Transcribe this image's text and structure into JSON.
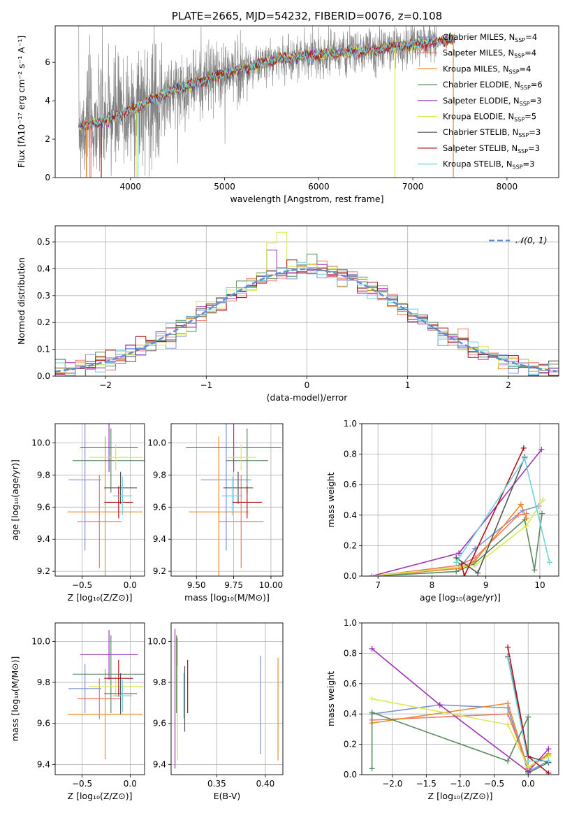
{
  "colors": {
    "chabrier_miles": "#7b93d6",
    "salpeter_miles": "#f0786a",
    "kroupa_miles": "#ef8a2a",
    "chabrier_elodie": "#5b8a5e",
    "salpeter_elodie": "#9d33b8",
    "kroupa_elodie": "#d7ea4f",
    "chabrier_stelib": "#555555",
    "salpeter_stelib": "#b0121a",
    "kroupa_stelib": "#72d0dc",
    "data": "#808080",
    "normal": "#5b8ed6",
    "grid": "#b0b0b0"
  },
  "chart_data": [
    {
      "id": "spectrum",
      "type": "line",
      "title": "PLATE=2665, MJD=54232, FIBERID=0076, z=0.108",
      "xlabel": "wavelength [Angstrom, rest frame]",
      "ylabel": "Flux [fλ10⁻¹⁷ erg cm⁻² s⁻¹ A⁻¹]",
      "xlim": [
        3200,
        8550
      ],
      "ylim": [
        0,
        7.9
      ],
      "xticks": [
        4000,
        5000,
        6000,
        7000,
        8000
      ],
      "yticks": [
        0,
        2,
        4,
        6
      ],
      "grid": false,
      "legend_position": "top-right",
      "legend": [
        {
          "name": "Chabrier MILES, N_SSP=4",
          "base": "Chabrier MILES, N",
          "sub": "SSP",
          "tail": "=4",
          "color": "chabrier_miles"
        },
        {
          "name": "Salpeter MILES, N_SSP=4",
          "base": "Salpeter MILES, N",
          "sub": "SSP",
          "tail": "=4",
          "color": "salpeter_miles"
        },
        {
          "name": "Kroupa MILES, N_SSP=4",
          "base": "Kroupa MILES, N",
          "sub": "SSP",
          "tail": "=4",
          "color": "kroupa_miles"
        },
        {
          "name": "Chabrier ELODIE, N_SSP=6",
          "base": "Chabrier ELODIE, N",
          "sub": "SSP",
          "tail": "=6",
          "color": "chabrier_elodie"
        },
        {
          "name": "Salpeter ELODIE, N_SSP=3",
          "base": "Salpeter ELODIE, N",
          "sub": "SSP",
          "tail": "=3",
          "color": "salpeter_elodie"
        },
        {
          "name": "Kroupa ELODIE, N_SSP=5",
          "base": "Kroupa ELODIE, N",
          "sub": "SSP",
          "tail": "=5",
          "color": "kroupa_elodie"
        },
        {
          "name": "Chabrier STELIB, N_SSP=3",
          "base": "Chabrier STELIB, N",
          "sub": "SSP",
          "tail": "=3",
          "color": "chabrier_stelib"
        },
        {
          "name": "Salpeter STELIB, N_SSP=3",
          "base": "Salpeter STELIB, N",
          "sub": "SSP",
          "tail": "=3",
          "color": "salpeter_stelib"
        },
        {
          "name": "Kroupa STELIB, N_SSP=3",
          "base": "Kroupa STELIB, N",
          "sub": "SSP",
          "tail": "=3",
          "color": "kroupa_stelib"
        }
      ],
      "continuum": [
        [
          3450,
          2.7
        ],
        [
          3600,
          2.8
        ],
        [
          3800,
          3.1
        ],
        [
          4000,
          3.5
        ],
        [
          4200,
          4.0
        ],
        [
          4500,
          4.6
        ],
        [
          4800,
          5.1
        ],
        [
          5000,
          5.4
        ],
        [
          5300,
          5.8
        ],
        [
          5600,
          6.2
        ],
        [
          6000,
          6.4
        ],
        [
          6500,
          6.6
        ],
        [
          7000,
          6.9
        ],
        [
          7400,
          7.2
        ]
      ],
      "model_range": [
        3450,
        7450
      ],
      "data_range": [
        3450,
        7250
      ]
    },
    {
      "id": "residuals",
      "type": "histogram",
      "xlabel": "(data-model)/error",
      "ylabel": "Normed distribution",
      "xlim": [
        -2.5,
        2.5
      ],
      "ylim": [
        0,
        0.56
      ],
      "xticks": [
        -2,
        -1,
        0,
        1,
        2
      ],
      "yticks": [
        0.0,
        0.1,
        0.2,
        0.3,
        0.4,
        0.5
      ],
      "grid": true,
      "legend_position": "top-right",
      "legend": "𝒩(0, 1)",
      "series_colors": [
        "chabrier_miles",
        "salpeter_miles",
        "kroupa_miles",
        "chabrier_elodie",
        "salpeter_elodie",
        "kroupa_elodie",
        "chabrier_stelib",
        "salpeter_stelib",
        "kroupa_stelib"
      ],
      "bin_width": 0.1
    },
    {
      "id": "age_vs_Z",
      "type": "errorbar",
      "xlabel": "Z [log₁₀(Z/Z⊙)]",
      "ylabel": "age  [log₁₀(age/yr)]",
      "xlim": [
        -0.78,
        0.15
      ],
      "ylim": [
        9.17,
        10.12
      ],
      "xticks": [
        -0.5,
        0.0
      ],
      "xticklabels": [
        "−0.5",
        "0.0"
      ],
      "yticks": [
        9.2,
        9.4,
        9.6,
        9.8,
        10.0
      ],
      "grid": true,
      "points": [
        {
          "c": "chabrier_miles",
          "x": -0.47,
          "xe": 0.17,
          "y": 9.77,
          "ye": 0.44
        },
        {
          "c": "salpeter_miles",
          "x": -0.32,
          "xe": 0.23,
          "y": 9.51,
          "ye": 0.29
        },
        {
          "c": "kroupa_miles",
          "x": -0.26,
          "xe": 0.39,
          "y": 9.57,
          "ye": 0.47
        },
        {
          "c": "chabrier_elodie",
          "x": -0.2,
          "xe": 0.4,
          "y": 9.89,
          "ye": 0.2
        },
        {
          "c": "salpeter_elodie",
          "x": -0.22,
          "xe": 0.3,
          "y": 9.97,
          "ye": 0.15
        },
        {
          "c": "kroupa_elodie",
          "x": -0.15,
          "xe": 0.28,
          "y": 9.91,
          "ye": 0.08
        },
        {
          "c": "chabrier_stelib",
          "x": -0.1,
          "xe": 0.17,
          "y": 9.72,
          "ye": 0.1
        },
        {
          "c": "salpeter_stelib",
          "x": -0.12,
          "xe": 0.15,
          "y": 9.63,
          "ye": 0.1
        },
        {
          "c": "kroupa_stelib",
          "x": -0.08,
          "xe": 0.1,
          "y": 9.67,
          "ye": 0.12
        }
      ]
    },
    {
      "id": "age_vs_mass",
      "type": "errorbar",
      "xlabel": "mass [log₁₀(M/M⊙)]",
      "ylabel": "",
      "xlim": [
        9.33,
        10.08
      ],
      "ylim": [
        9.17,
        10.12
      ],
      "xticks": [
        9.5,
        9.75,
        10.0
      ],
      "xticklabels": [
        "9.50",
        "9.75",
        "10.00"
      ],
      "yticks": [
        9.2,
        9.4,
        9.6,
        9.8,
        10.0
      ],
      "grid": true,
      "points": [
        {
          "c": "chabrier_miles",
          "x": 9.7,
          "xe": 0.17,
          "y": 9.77,
          "ye": 0.44
        },
        {
          "c": "salpeter_miles",
          "x": 9.8,
          "xe": 0.15,
          "y": 9.51,
          "ye": 0.29
        },
        {
          "c": "kroupa_miles",
          "x": 9.65,
          "xe": 0.2,
          "y": 9.57,
          "ye": 0.47
        },
        {
          "c": "chabrier_elodie",
          "x": 9.84,
          "xe": 0.14,
          "y": 9.89,
          "ye": 0.2
        },
        {
          "c": "salpeter_elodie",
          "x": 9.75,
          "xe": 0.32,
          "y": 9.97,
          "ye": 0.15
        },
        {
          "c": "kroupa_elodie",
          "x": 9.8,
          "xe": 0.1,
          "y": 9.91,
          "ye": 0.08
        },
        {
          "c": "chabrier_stelib",
          "x": 9.78,
          "xe": 0.1,
          "y": 9.72,
          "ye": 0.1
        },
        {
          "c": "salpeter_stelib",
          "x": 9.84,
          "xe": 0.1,
          "y": 9.63,
          "ye": 0.1
        },
        {
          "c": "kroupa_stelib",
          "x": 9.74,
          "xe": 0.07,
          "y": 9.67,
          "ye": 0.12
        }
      ]
    },
    {
      "id": "weight_vs_age",
      "type": "line",
      "xlabel": "age  [log₁₀(age/yr)]",
      "ylabel": "mass weight",
      "xlim": [
        6.7,
        10.35
      ],
      "ylim": [
        0,
        1.0
      ],
      "xticks": [
        7,
        8,
        9,
        10
      ],
      "yticks": [
        0.0,
        0.2,
        0.4,
        0.6,
        0.8,
        1.0
      ],
      "grid": true,
      "series": [
        {
          "c": "chabrier_miles",
          "points": [
            [
              6.88,
              0.0
            ],
            [
              8.5,
              0.05
            ],
            [
              8.8,
              0.18
            ],
            [
              9.68,
              0.43
            ],
            [
              9.98,
              0.46
            ]
          ]
        },
        {
          "c": "salpeter_miles",
          "points": [
            [
              6.88,
              0.0
            ],
            [
              8.5,
              0.07
            ],
            [
              8.8,
              0.12
            ],
            [
              9.6,
              0.4
            ],
            [
              9.75,
              0.41
            ]
          ]
        },
        {
          "c": "kroupa_miles",
          "points": [
            [
              6.88,
              0.0
            ],
            [
              8.5,
              0.05
            ],
            [
              8.8,
              0.1
            ],
            [
              9.65,
              0.47
            ],
            [
              9.75,
              0.38
            ]
          ]
        },
        {
          "c": "chabrier_elodie",
          "points": [
            [
              6.88,
              0.0
            ],
            [
              8.45,
              0.03
            ],
            [
              8.78,
              0.08
            ],
            [
              9.72,
              0.37
            ],
            [
              9.9,
              0.04
            ],
            [
              10.04,
              0.41
            ]
          ]
        },
        {
          "c": "salpeter_elodie",
          "points": [
            [
              6.88,
              0.0
            ],
            [
              8.5,
              0.15
            ],
            [
              10.03,
              0.83
            ]
          ]
        },
        {
          "c": "kroupa_elodie",
          "points": [
            [
              6.88,
              0.0
            ],
            [
              8.8,
              0.07
            ],
            [
              9.75,
              0.33
            ],
            [
              10.06,
              0.5
            ]
          ]
        },
        {
          "c": "chabrier_stelib",
          "points": [
            [
              8.45,
              0.12
            ],
            [
              8.85,
              0.02
            ],
            [
              9.72,
              0.78
            ]
          ]
        },
        {
          "c": "salpeter_stelib",
          "points": [
            [
              8.55,
              0.08
            ],
            [
              8.6,
              0.0
            ],
            [
              9.7,
              0.84
            ]
          ]
        },
        {
          "c": "kroupa_stelib",
          "points": [
            [
              8.45,
              0.09
            ],
            [
              9.72,
              0.77
            ],
            [
              10.18,
              0.09
            ]
          ]
        }
      ]
    },
    {
      "id": "mass_vs_Z",
      "type": "errorbar",
      "xlabel": "Z [log₁₀(Z/Z⊙)]",
      "ylabel": "mass [log₁₀(M/M⊙)]",
      "xlim": [
        -0.78,
        0.15
      ],
      "ylim": [
        9.35,
        10.09
      ],
      "xticks": [
        -0.5,
        0.0
      ],
      "xticklabels": [
        "−0.5",
        "0.0"
      ],
      "yticks": [
        9.4,
        9.6,
        9.8,
        10.0
      ],
      "grid": true,
      "points": [
        {
          "c": "chabrier_miles",
          "x": -0.47,
          "xe": 0.17,
          "y": 9.77,
          "ye": 0.12
        },
        {
          "c": "salpeter_miles",
          "x": -0.32,
          "xe": 0.23,
          "y": 9.72,
          "ye": 0.1
        },
        {
          "c": "kroupa_miles",
          "x": -0.26,
          "xe": 0.39,
          "y": 9.645,
          "ye": 0.22
        },
        {
          "c": "chabrier_elodie",
          "x": -0.2,
          "xe": 0.4,
          "y": 9.84,
          "ye": 0.19
        },
        {
          "c": "salpeter_elodie",
          "x": -0.22,
          "xe": 0.3,
          "y": 9.935,
          "ye": 0.12
        },
        {
          "c": "kroupa_elodie",
          "x": -0.15,
          "xe": 0.28,
          "y": 9.78,
          "ye": 0.05
        },
        {
          "c": "chabrier_stelib",
          "x": -0.1,
          "xe": 0.17,
          "y": 9.745,
          "ye": 0.1
        },
        {
          "c": "salpeter_stelib",
          "x": -0.12,
          "xe": 0.15,
          "y": 9.82,
          "ye": 0.09
        },
        {
          "c": "kroupa_stelib",
          "x": -0.08,
          "xe": 0.1,
          "y": 9.735,
          "ye": 0.08
        }
      ]
    },
    {
      "id": "mass_vs_ebv",
      "type": "errorbar",
      "xlabel": "E(B-V)",
      "ylabel": "",
      "xlim": [
        0.303,
        0.418
      ],
      "ylim": [
        9.35,
        10.09
      ],
      "xticks": [
        0.35,
        0.4
      ],
      "xticklabels": [
        "0.35",
        "0.40"
      ],
      "yticks": [
        9.4,
        9.6,
        9.8,
        10.0
      ],
      "grid": true,
      "points": [
        {
          "c": "chabrier_miles",
          "x": 0.395,
          "xe": 0,
          "y": 9.69,
          "ye": 0.24
        },
        {
          "c": "salpeter_miles",
          "x": 0.3095,
          "xe": 0,
          "y": 9.72,
          "ye": 0.3
        },
        {
          "c": "kroupa_miles",
          "x": 0.413,
          "xe": 0,
          "y": 9.67,
          "ye": 0.25
        },
        {
          "c": "chabrier_elodie",
          "x": 0.3085,
          "xe": 0,
          "y": 9.84,
          "ye": 0.19
        },
        {
          "c": "salpeter_elodie",
          "x": 0.307,
          "xe": 0,
          "y": 9.72,
          "ye": 0.34
        },
        {
          "c": "kroupa_elodie",
          "x": 0.3095,
          "xe": 0,
          "y": 9.65,
          "ye": 0.23
        },
        {
          "c": "chabrier_stelib",
          "x": 0.317,
          "xe": 0,
          "y": 9.72,
          "ye": 0.16
        },
        {
          "c": "salpeter_stelib",
          "x": 0.32,
          "xe": 0,
          "y": 9.78,
          "ye": 0.13
        },
        {
          "c": "kroupa_stelib",
          "x": 0.316,
          "xe": 0,
          "y": 9.735,
          "ye": 0.11
        }
      ]
    },
    {
      "id": "weight_vs_Z",
      "type": "line",
      "xlabel": "Z [log₁₀(Z/Z⊙)]",
      "ylabel": "mass weight",
      "xlim": [
        -2.45,
        0.45
      ],
      "ylim": [
        0,
        1.0
      ],
      "xticks": [
        -2.0,
        -1.5,
        -1.0,
        -0.5,
        0.0
      ],
      "xticklabels": [
        "−2.0",
        "−1.5",
        "−1.0",
        "−0.5",
        "0.0"
      ],
      "yticks": [
        0.0,
        0.2,
        0.4,
        0.6,
        0.8,
        1.0
      ],
      "grid": true,
      "series": [
        {
          "c": "chabrier_miles",
          "points": [
            [
              -2.3,
              0.4
            ],
            [
              -1.3,
              0.46
            ],
            [
              -0.3,
              0.44
            ],
            [
              0.0,
              0.02
            ],
            [
              0.3,
              0.09
            ]
          ]
        },
        {
          "c": "salpeter_miles",
          "points": [
            [
              -2.3,
              0.36
            ],
            [
              -0.3,
              0.4
            ],
            [
              0.0,
              0.05
            ],
            [
              0.3,
              0.13
            ]
          ]
        },
        {
          "c": "kroupa_miles",
          "points": [
            [
              -2.3,
              0.34
            ],
            [
              -0.3,
              0.47
            ],
            [
              0.0,
              0.04
            ],
            [
              0.3,
              0.14
            ]
          ]
        },
        {
          "c": "chabrier_elodie",
          "points": [
            [
              -2.3,
              0.04
            ],
            [
              -2.3,
              0.41
            ],
            [
              -0.3,
              0.09
            ],
            [
              0.0,
              0.38
            ],
            [
              0.0,
              0.01
            ],
            [
              0.3,
              0.08
            ]
          ]
        },
        {
          "c": "salpeter_elodie",
          "points": [
            [
              -2.3,
              0.83
            ],
            [
              -1.3,
              0.46
            ],
            [
              0.0,
              0.02
            ],
            [
              0.3,
              0.17
            ]
          ]
        },
        {
          "c": "kroupa_elodie",
          "points": [
            [
              -2.3,
              0.5
            ],
            [
              -0.3,
              0.33
            ],
            [
              0.0,
              0.05
            ],
            [
              0.3,
              0.12
            ]
          ]
        },
        {
          "c": "chabrier_stelib",
          "points": [
            [
              -0.3,
              0.78
            ],
            [
              0.0,
              0.12
            ],
            [
              0.3,
              0.08
            ]
          ]
        },
        {
          "c": "salpeter_stelib",
          "points": [
            [
              -0.3,
              0.84
            ],
            [
              0.0,
              0.12
            ],
            [
              0.3,
              0.01
            ]
          ]
        },
        {
          "c": "kroupa_stelib",
          "points": [
            [
              -0.3,
              0.77
            ],
            [
              0.0,
              0.09
            ],
            [
              0.3,
              0.09
            ]
          ]
        }
      ]
    }
  ]
}
